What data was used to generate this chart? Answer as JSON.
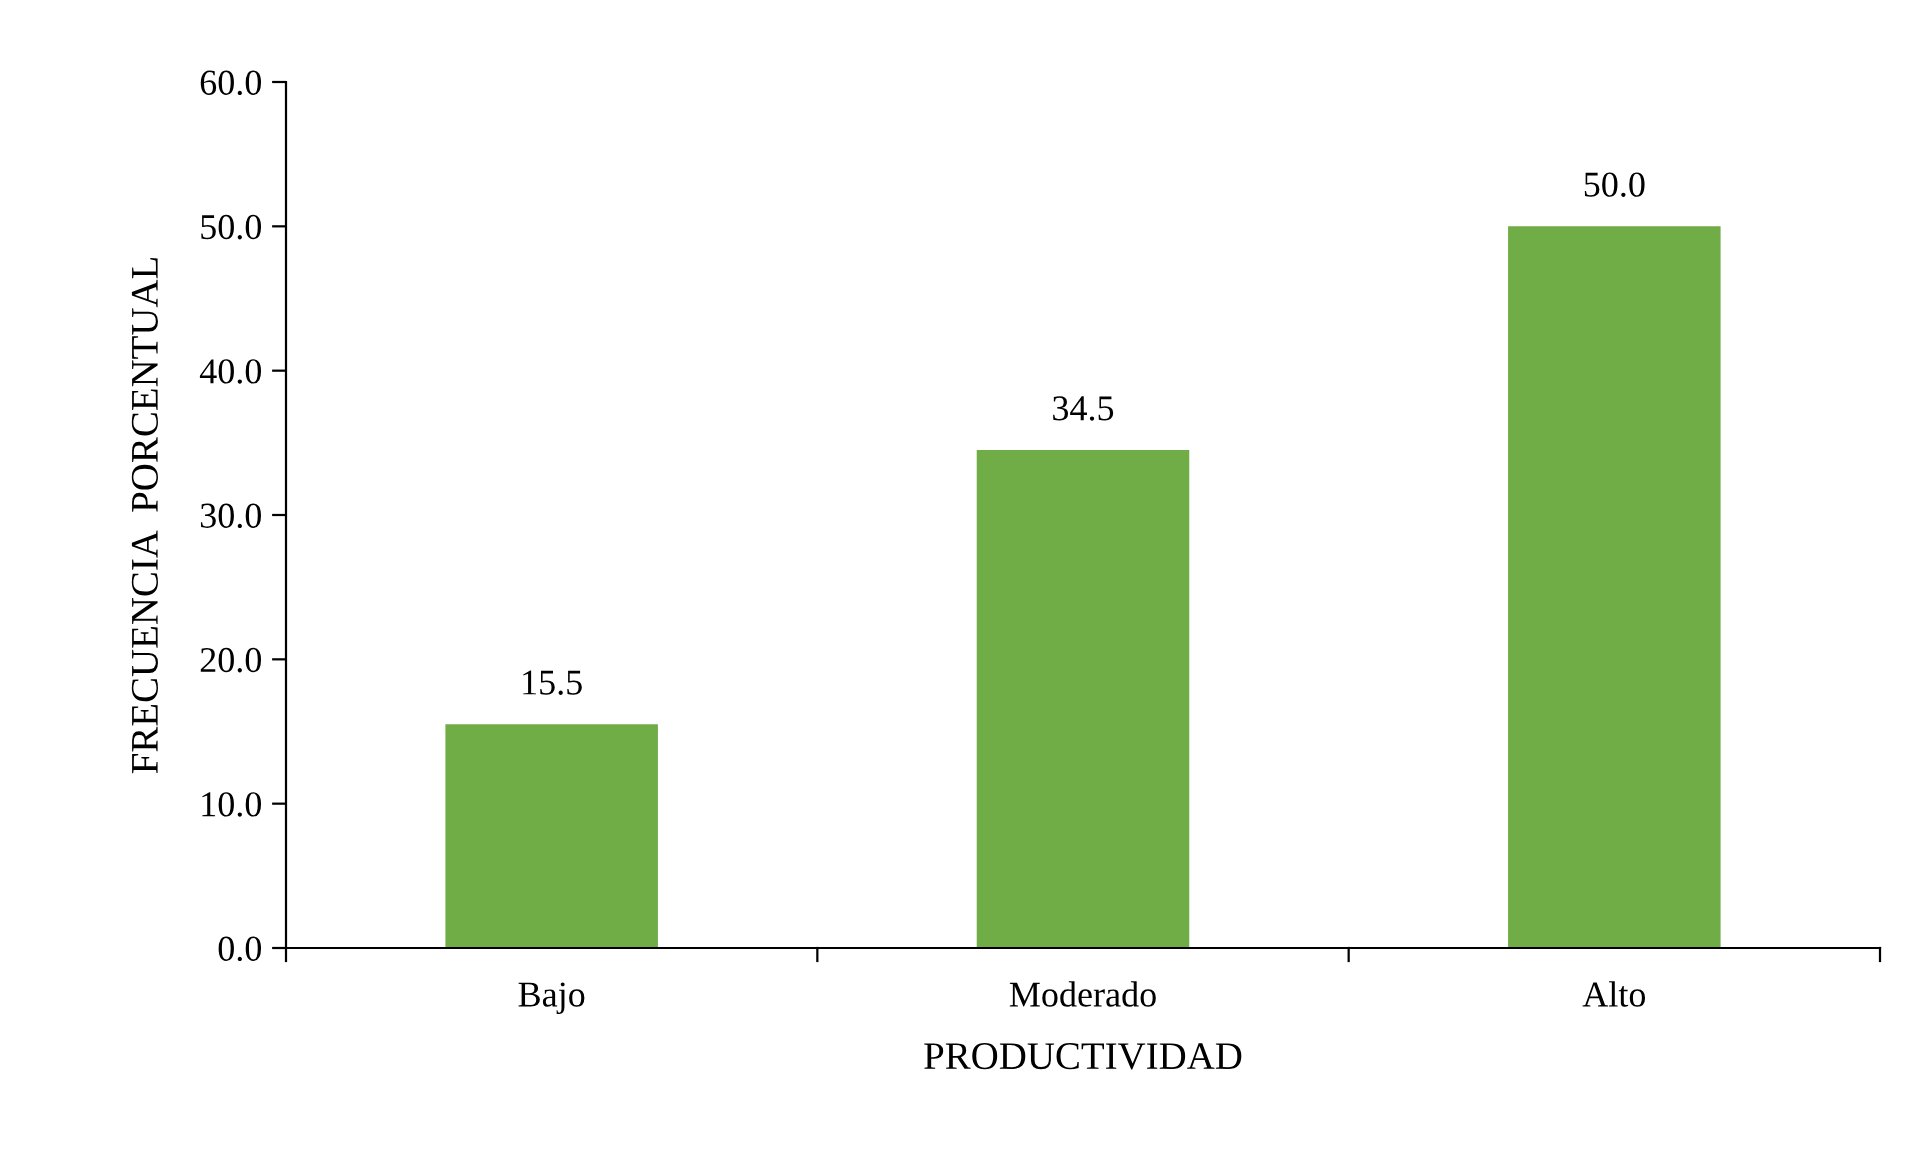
{
  "chart_data": {
    "type": "bar",
    "xlabel": "PRODUCTIVIDAD",
    "ylabel": "FRECUENCIA  PORCENTUAL",
    "categories": [
      "Bajo",
      "Moderado",
      "Alto"
    ],
    "values": [
      15.5,
      34.5,
      50.0
    ],
    "value_labels": [
      "15.5",
      "34.5",
      "50.0"
    ],
    "color": "#70ad47",
    "ylim": [
      0,
      60
    ],
    "yticks": [
      {
        "value": 0,
        "label": "0.0"
      },
      {
        "value": 10,
        "label": "10.0"
      },
      {
        "value": 20,
        "label": "20.0"
      },
      {
        "value": 30,
        "label": "30.0"
      },
      {
        "value": 40,
        "label": "40.0"
      },
      {
        "value": 50,
        "label": "50.0"
      },
      {
        "value": 60,
        "label": "60.0"
      }
    ],
    "grid": false,
    "legend": false
  }
}
